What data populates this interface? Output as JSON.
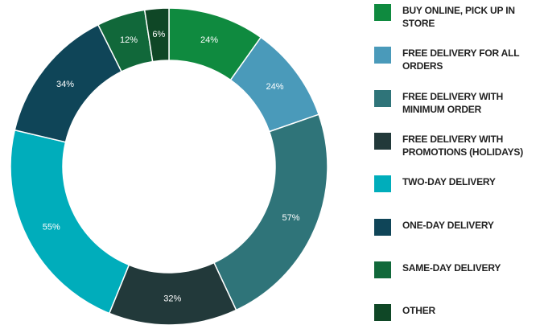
{
  "chart_data": {
    "type": "donut",
    "categories": [
      "BUY ONLINE, PICK UP IN STORE",
      "FREE DELIVERY FOR ALL ORDERS",
      "FREE DELIVERY WITH MINIMUM ORDER",
      "FREE DELIVERY WITH PROMOTIONS (HOLIDAYS)",
      "TWO-DAY DELIVERY",
      "ONE-DAY DELIVERY",
      "SAME-DAY DELIVERY",
      "OTHER"
    ],
    "values": [
      24,
      24,
      57,
      32,
      55,
      34,
      12,
      6
    ],
    "value_labels": [
      "24%",
      "24%",
      "57%",
      "32%",
      "55%",
      "34%",
      "12%",
      "6%"
    ],
    "colors": [
      "#0f8a3f",
      "#4a9aba",
      "#2f7479",
      "#22393a",
      "#00adbb",
      "#0f4558",
      "#11683a",
      "#0f4726"
    ],
    "legend": "right"
  }
}
